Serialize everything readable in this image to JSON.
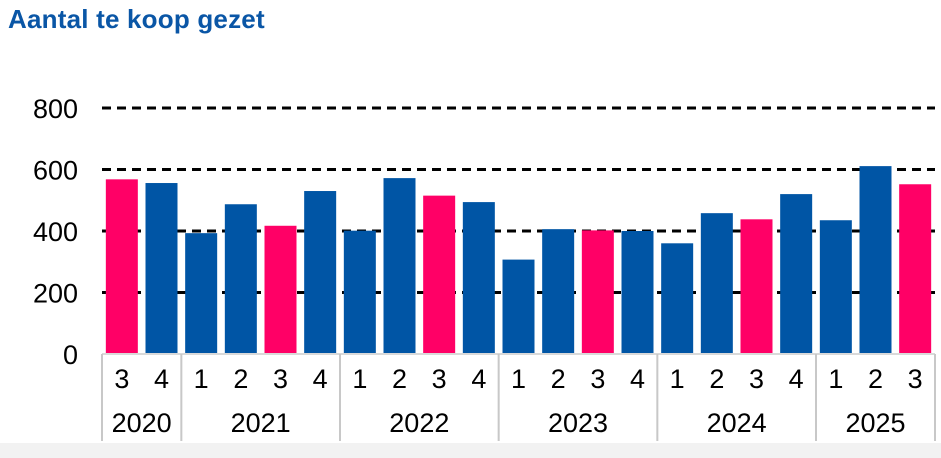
{
  "title": "Aantal te koop gezet",
  "colors": {
    "blue": "#0055a5",
    "pink": "#ff0066",
    "title": "#0a56a6",
    "grid": "#000000"
  },
  "chart_data": {
    "type": "bar",
    "title": "Aantal te koop gezet",
    "xlabel": "",
    "ylabel": "",
    "ylim": [
      0,
      800
    ],
    "yticks": [
      0,
      200,
      400,
      600,
      800
    ],
    "grid": "dashed horizontal",
    "legend": "none",
    "groups": [
      {
        "year": "2020",
        "quarters": [
          "3",
          "4"
        ]
      },
      {
        "year": "2021",
        "quarters": [
          "1",
          "2",
          "3",
          "4"
        ]
      },
      {
        "year": "2022",
        "quarters": [
          "1",
          "2",
          "3",
          "4"
        ]
      },
      {
        "year": "2023",
        "quarters": [
          "1",
          "2",
          "3",
          "4"
        ]
      },
      {
        "year": "2024",
        "quarters": [
          "1",
          "2",
          "3",
          "4"
        ]
      },
      {
        "year": "2025",
        "quarters": [
          "1",
          "2",
          "3"
        ]
      }
    ],
    "categories": [
      "2020 Q3",
      "2020 Q4",
      "2021 Q1",
      "2021 Q2",
      "2021 Q3",
      "2021 Q4",
      "2022 Q1",
      "2022 Q2",
      "2022 Q3",
      "2022 Q4",
      "2023 Q1",
      "2023 Q2",
      "2023 Q3",
      "2023 Q4",
      "2024 Q1",
      "2024 Q2",
      "2024 Q3",
      "2024 Q4",
      "2025 Q1",
      "2025 Q2",
      "2025 Q3"
    ],
    "values": [
      568,
      556,
      393,
      487,
      417,
      530,
      401,
      572,
      515,
      494,
      307,
      406,
      402,
      400,
      360,
      458,
      438,
      520,
      435,
      611,
      552
    ],
    "highlight": [
      true,
      false,
      false,
      false,
      true,
      false,
      false,
      false,
      true,
      false,
      false,
      false,
      true,
      false,
      false,
      false,
      true,
      false,
      false,
      false,
      true
    ]
  }
}
